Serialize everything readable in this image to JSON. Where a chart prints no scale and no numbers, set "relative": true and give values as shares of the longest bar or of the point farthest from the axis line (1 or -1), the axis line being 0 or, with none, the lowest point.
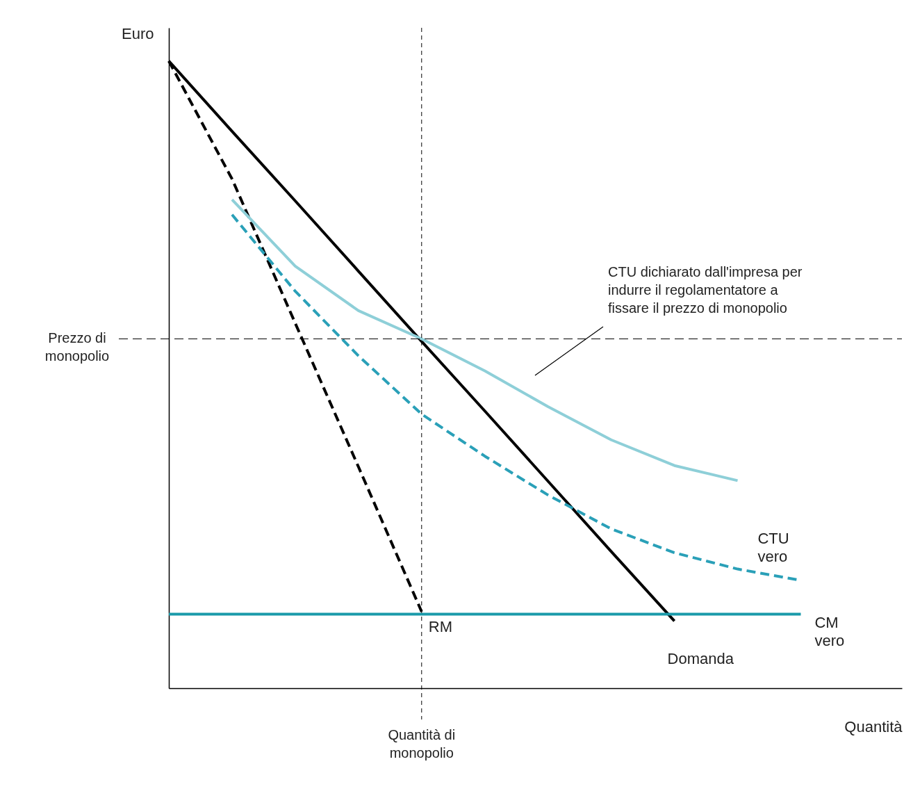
{
  "chart_data": {
    "type": "line",
    "relative": true,
    "xlabel": "Quantità",
    "ylabel": "Euro",
    "categories": [
      null,
      null,
      null,
      null,
      null,
      null,
      null,
      null,
      null,
      null,
      null
    ],
    "series": [
      {
        "name": "Domanda",
        "color": "#000000",
        "line_style": "solid",
        "values": [
          1.0,
          0.888,
          0.777,
          0.665,
          0.553,
          0.442,
          0.33,
          0.218,
          0.107,
          null,
          null
        ]
      },
      {
        "name": "RM",
        "color": "#000000",
        "line_style": "dashed",
        "values": [
          1.0,
          0.812,
          0.582,
          0.353,
          0.122,
          null,
          null,
          null,
          null,
          null,
          null
        ]
      },
      {
        "name": "CM vero",
        "color": "#1a9aaa",
        "line_style": "solid",
        "values": [
          0.118,
          0.118,
          0.118,
          0.118,
          0.118,
          0.118,
          0.118,
          0.118,
          0.118,
          0.118,
          0.118
        ]
      },
      {
        "color": "#8ecfd8",
        "line_style": "solid",
        "values": [
          null,
          0.779,
          0.673,
          0.602,
          0.557,
          0.506,
          0.449,
          0.396,
          0.355,
          0.331,
          null
        ]
      },
      {
        "name": "CTU vero",
        "color": "#2aa0b8",
        "line_style": "dashed",
        "values": [
          null,
          0.755,
          0.633,
          0.53,
          0.437,
          0.37,
          0.308,
          0.254,
          0.216,
          0.19,
          0.172
        ]
      }
    ],
    "ref_lines": [
      {
        "axis": "y",
        "value": 0.557,
        "label": "Prezzo di monopolio",
        "line_style": "dashed",
        "color": "#000000"
      }
    ],
    "annotations": [
      "CTU dichiarato dall'impresa per indurre il regolamentatore a fissare il prezzo di monopolio",
      "Quantità di monopolio"
    ]
  }
}
